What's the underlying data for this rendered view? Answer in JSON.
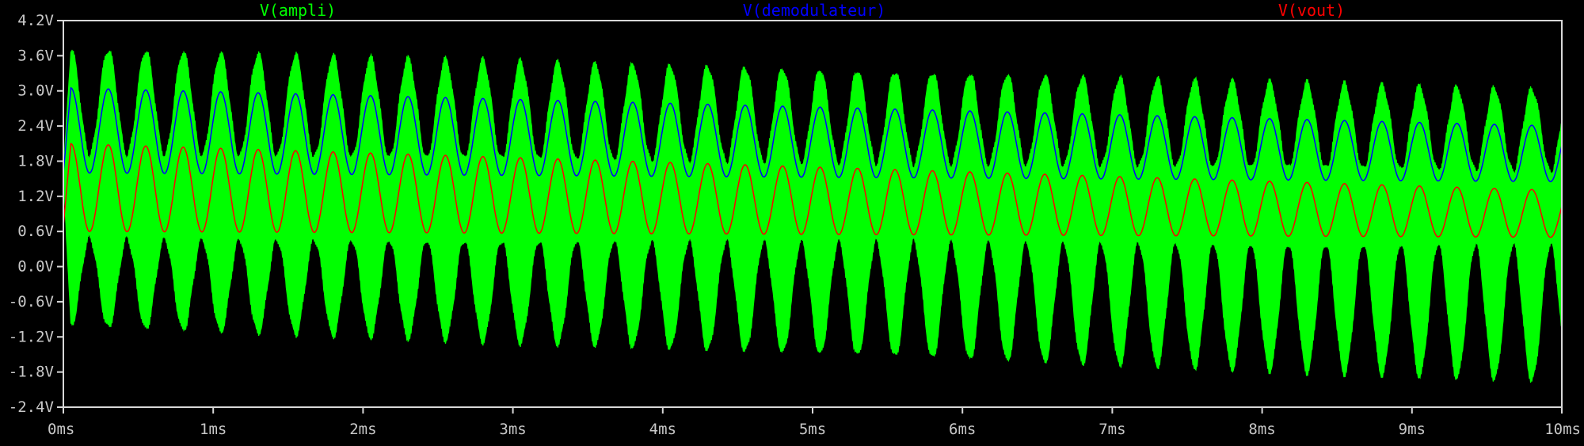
{
  "chart_data": {
    "type": "line",
    "title": "",
    "xlabel": "",
    "ylabel": "",
    "xlim": [
      0,
      10
    ],
    "ylim": [
      -2.4,
      4.2
    ],
    "x_unit": "ms",
    "y_unit": "V",
    "grid": false,
    "legend_position": "top",
    "xticks": [
      "0ms",
      "1ms",
      "2ms",
      "3ms",
      "4ms",
      "5ms",
      "6ms",
      "7ms",
      "8ms",
      "9ms",
      "10ms"
    ],
    "yticks": [
      "4.2V",
      "3.6V",
      "3.0V",
      "2.4V",
      "1.8V",
      "1.2V",
      "0.6V",
      "0.0V",
      "-0.6V",
      "-1.2V",
      "-1.8V",
      "-2.4V"
    ],
    "series": [
      {
        "name": "V(ampli)",
        "color": "#00ff00",
        "style": "filled-envelope",
        "envelope_period_ms": 0.25,
        "upper_envelope": {
          "x": [
            0.05,
            10
          ],
          "peak": [
            3.7,
            3.0
          ],
          "trough": [
            1.9,
            1.6
          ]
        },
        "lower_envelope": {
          "x": [
            0.05,
            10
          ],
          "peak": [
            -1.0,
            -1.95
          ],
          "trough": [
            0.5,
            0.4
          ]
        }
      },
      {
        "name": "V(demodulateur)",
        "color": "#0000ff",
        "period_ms": 0.25,
        "x": [
          0,
          0.05,
          10
        ],
        "max": [
          1.6,
          3.05,
          2.4
        ],
        "min": [
          1.6,
          1.6,
          1.45
        ]
      },
      {
        "name": "V(vout)",
        "color": "#ff0000",
        "period_ms": 0.25,
        "x": [
          0,
          0.05,
          10
        ],
        "max": [
          0.7,
          2.1,
          1.3
        ],
        "min": [
          0.7,
          0.6,
          0.5
        ]
      }
    ]
  }
}
